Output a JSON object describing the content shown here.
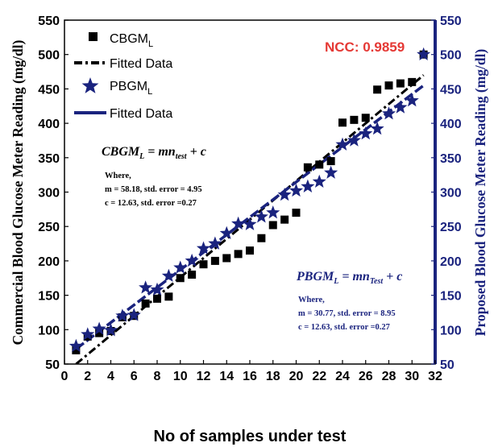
{
  "chart_data": {
    "type": "scatter",
    "xlabel": "No of samples under test",
    "ylabel_left": "Commercial Blood Glucose Meter Reading (mg/dl)",
    "ylabel_right": "Proposed Blood Glucose Meter Reading (mg/dl)",
    "xlim": [
      0,
      32
    ],
    "ylim": [
      50,
      550
    ],
    "x_ticks": [
      "0",
      "2",
      "4",
      "6",
      "8",
      "10",
      "12",
      "14",
      "16",
      "18",
      "20",
      "22",
      "24",
      "26",
      "28",
      "30",
      "32"
    ],
    "y_ticks": [
      "50",
      "100",
      "150",
      "200",
      "250",
      "300",
      "350",
      "400",
      "450",
      "500",
      "550"
    ],
    "grid": false,
    "legend_position": "top-left",
    "ncc_label": "NCC: 0.9859",
    "series": [
      {
        "name": "CBGM_L",
        "name_main": "CBGM",
        "name_sub": "L",
        "marker": "square",
        "color": "#000000",
        "x": [
          1,
          2,
          3,
          4,
          5,
          6,
          7,
          8,
          9,
          10,
          11,
          12,
          13,
          14,
          15,
          16,
          17,
          18,
          19,
          20,
          21,
          22,
          23,
          24,
          25,
          26,
          27,
          28,
          29,
          30,
          31
        ],
        "y": [
          70,
          90,
          95,
          98,
          118,
          120,
          138,
          145,
          148,
          175,
          180,
          195,
          200,
          204,
          210,
          215,
          233,
          252,
          260,
          270,
          336,
          340,
          345,
          401,
          405,
          408,
          449,
          455,
          458,
          460,
          500
        ]
      },
      {
        "name": "Fitted Data",
        "marker": "dash-dot-line",
        "color": "#000000",
        "x": [
          1,
          31
        ],
        "y": [
          50,
          470
        ]
      },
      {
        "name": "PBGM_L",
        "name_main": "PBGM",
        "name_sub": "L",
        "marker": "star",
        "color": "#1a237e",
        "x": [
          1,
          2,
          3,
          4,
          5,
          6,
          7,
          8,
          9,
          10,
          11,
          12,
          13,
          14,
          15,
          16,
          17,
          18,
          19,
          20,
          21,
          22,
          23,
          24,
          25,
          26,
          27,
          28,
          29,
          30,
          31
        ],
        "y": [
          76,
          93,
          101,
          99,
          120,
          121,
          161,
          158,
          178,
          190,
          200,
          218,
          225,
          240,
          254,
          253,
          264,
          270,
          296,
          302,
          308,
          315,
          328,
          369,
          375,
          385,
          392,
          414,
          423,
          433,
          500
        ]
      },
      {
        "name": "Fitted Data",
        "marker": "dashed-line",
        "color": "#1a237e",
        "x": [
          1,
          31
        ],
        "y": [
          72,
          455
        ]
      }
    ],
    "annotations": {
      "cbgm": {
        "equation_lhs": "CBGM",
        "equation_lhs_sub": "L",
        "equation_rhs": " = mn",
        "equation_rhs_sub": "test",
        "equation_tail": " + c",
        "where": "Where,",
        "line1": "m = 58.18, std. error = 4.95",
        "line2": "c = 12.63, std. error =0.27"
      },
      "pbgm": {
        "equation_lhs": "PBGM",
        "equation_lhs_sub": "L",
        "equation_rhs": " = mn",
        "equation_rhs_sub": "Test",
        "equation_tail": " + c",
        "where": "Where,",
        "line1": "m = 30.77, std. error = 8.95",
        "line2": "c = 12.63, std. error =0.27"
      }
    }
  }
}
